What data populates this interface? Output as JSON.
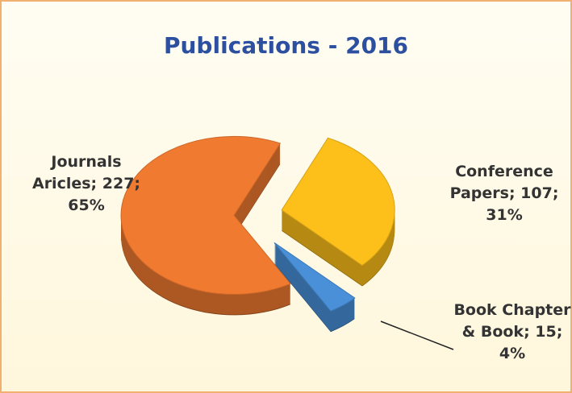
{
  "chart_data": {
    "type": "pie",
    "title": "Publications - 2016",
    "values": [
      227,
      107,
      15
    ],
    "value_labels": [
      "Journals Aricles; 227; 65%",
      "Conference Papers; 107; 31%",
      "Book Chapter & Book; 15; 4%"
    ],
    "colors": [
      "#f07a30",
      "#fdbf1a",
      "#4a90d8"
    ]
  }
}
